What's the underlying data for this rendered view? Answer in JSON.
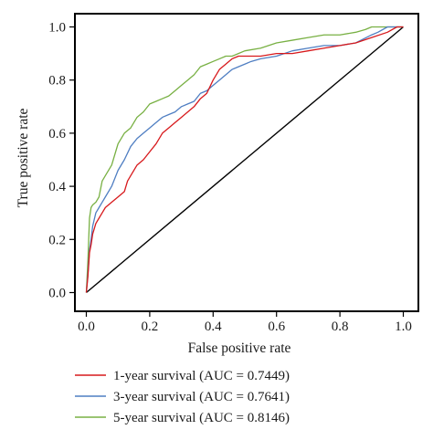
{
  "chart_data": {
    "type": "line",
    "title": "",
    "xlabel": "False positive rate",
    "ylabel": "True positive rate",
    "xlim": [
      0,
      1
    ],
    "ylim": [
      0,
      1
    ],
    "x_ticks": [
      "0.0",
      "0.2",
      "0.4",
      "0.6",
      "0.8",
      "1.0"
    ],
    "y_ticks": [
      "0.0",
      "0.2",
      "0.4",
      "0.6",
      "0.8",
      "1.0"
    ],
    "grid": false,
    "legend_position": "below",
    "reference_line": {
      "x": [
        0,
        1
      ],
      "y": [
        0,
        1
      ],
      "color": "#000000"
    },
    "series": [
      {
        "name": "1-year survival (AUC = 0.7449)",
        "color": "#d7191c",
        "x": [
          0,
          0.005,
          0.01,
          0.015,
          0.02,
          0.03,
          0.04,
          0.05,
          0.06,
          0.08,
          0.09,
          0.1,
          0.12,
          0.13,
          0.14,
          0.16,
          0.18,
          0.2,
          0.22,
          0.24,
          0.26,
          0.28,
          0.3,
          0.32,
          0.34,
          0.36,
          0.38,
          0.4,
          0.42,
          0.44,
          0.46,
          0.48,
          0.5,
          0.52,
          0.55,
          0.6,
          0.65,
          0.7,
          0.75,
          0.8,
          0.85,
          0.9,
          0.95,
          0.98,
          1.0
        ],
        "y": [
          0,
          0.06,
          0.15,
          0.18,
          0.22,
          0.26,
          0.28,
          0.3,
          0.32,
          0.34,
          0.35,
          0.36,
          0.38,
          0.42,
          0.44,
          0.48,
          0.5,
          0.53,
          0.56,
          0.6,
          0.62,
          0.64,
          0.66,
          0.68,
          0.7,
          0.73,
          0.75,
          0.8,
          0.84,
          0.86,
          0.88,
          0.89,
          0.89,
          0.89,
          0.89,
          0.9,
          0.9,
          0.91,
          0.92,
          0.93,
          0.94,
          0.96,
          0.98,
          1.0,
          1.0
        ]
      },
      {
        "name": "3-year survival (AUC = 0.7641)",
        "color": "#4f7ec2",
        "x": [
          0,
          0.005,
          0.01,
          0.015,
          0.02,
          0.03,
          0.04,
          0.05,
          0.06,
          0.08,
          0.1,
          0.12,
          0.14,
          0.16,
          0.18,
          0.2,
          0.22,
          0.24,
          0.26,
          0.28,
          0.3,
          0.32,
          0.34,
          0.36,
          0.38,
          0.4,
          0.42,
          0.44,
          0.46,
          0.48,
          0.5,
          0.52,
          0.55,
          0.6,
          0.65,
          0.7,
          0.75,
          0.8,
          0.85,
          0.9,
          0.92,
          0.95,
          0.98,
          1.0
        ],
        "y": [
          0,
          0.07,
          0.16,
          0.2,
          0.25,
          0.3,
          0.32,
          0.34,
          0.36,
          0.4,
          0.46,
          0.5,
          0.55,
          0.58,
          0.6,
          0.62,
          0.64,
          0.66,
          0.67,
          0.68,
          0.7,
          0.71,
          0.72,
          0.75,
          0.76,
          0.78,
          0.8,
          0.82,
          0.84,
          0.85,
          0.86,
          0.87,
          0.88,
          0.89,
          0.91,
          0.92,
          0.93,
          0.93,
          0.94,
          0.97,
          0.98,
          1.0,
          1.0,
          1.0
        ]
      },
      {
        "name": "5-year survival (AUC = 0.8146)",
        "color": "#78b043",
        "x": [
          0,
          0.005,
          0.01,
          0.015,
          0.02,
          0.03,
          0.04,
          0.05,
          0.06,
          0.08,
          0.1,
          0.12,
          0.14,
          0.16,
          0.18,
          0.2,
          0.22,
          0.24,
          0.26,
          0.28,
          0.3,
          0.32,
          0.34,
          0.36,
          0.38,
          0.4,
          0.42,
          0.44,
          0.46,
          0.48,
          0.5,
          0.55,
          0.6,
          0.65,
          0.7,
          0.75,
          0.8,
          0.85,
          0.88,
          0.9,
          0.95,
          0.98,
          1.0
        ],
        "y": [
          0,
          0.12,
          0.28,
          0.32,
          0.33,
          0.34,
          0.36,
          0.42,
          0.44,
          0.48,
          0.56,
          0.6,
          0.62,
          0.66,
          0.68,
          0.71,
          0.72,
          0.73,
          0.74,
          0.76,
          0.78,
          0.8,
          0.82,
          0.85,
          0.86,
          0.87,
          0.88,
          0.89,
          0.89,
          0.9,
          0.91,
          0.92,
          0.94,
          0.95,
          0.96,
          0.97,
          0.97,
          0.98,
          0.99,
          1.0,
          1.0,
          1.0,
          1.0
        ]
      }
    ]
  }
}
